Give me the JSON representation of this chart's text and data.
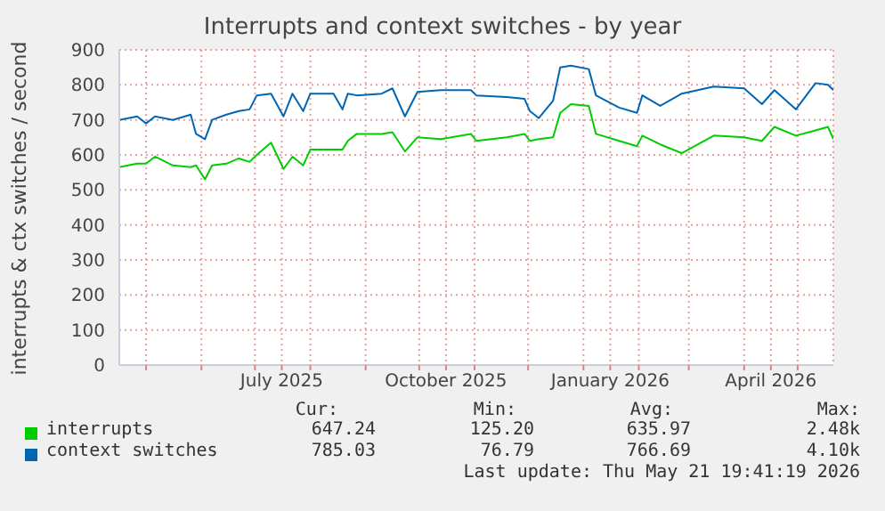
{
  "chart_data": {
    "type": "line",
    "title": "Interrupts and context switches - by year",
    "ylabel": "interrupts & ctx switches / second",
    "x": [
      "2025-04-16",
      "2025-04-26",
      "2025-05-01",
      "2025-05-06",
      "2025-05-16",
      "2025-05-26",
      "2025-05-29",
      "2025-06-03",
      "2025-06-07",
      "2025-06-15",
      "2025-06-22",
      "2025-06-28",
      "2025-07-02",
      "2025-07-10",
      "2025-07-17",
      "2025-07-22",
      "2025-07-28",
      "2025-08-01",
      "2025-08-14",
      "2025-08-19",
      "2025-08-22",
      "2025-08-27",
      "2025-09-10",
      "2025-09-16",
      "2025-09-23",
      "2025-09-30",
      "2025-10-13",
      "2025-10-30",
      "2025-11-02",
      "2025-11-19",
      "2025-11-29",
      "2025-12-02",
      "2025-12-07",
      "2025-12-15",
      "2025-12-19",
      "2025-12-25",
      "2026-01-04",
      "2026-01-08",
      "2026-01-21",
      "2026-01-31",
      "2026-02-03",
      "2026-02-13",
      "2026-02-25",
      "2026-03-15",
      "2026-04-01",
      "2026-04-11",
      "2026-04-18",
      "2026-04-30",
      "2026-05-11",
      "2026-05-18",
      "2026-05-21"
    ],
    "series": [
      {
        "name": "interrupts",
        "color": "#00cc00",
        "values": [
          565,
          575,
          575,
          595,
          570,
          565,
          570,
          530,
          570,
          575,
          590,
          580,
          600,
          635,
          560,
          595,
          570,
          615,
          615,
          615,
          640,
          660,
          660,
          665,
          610,
          650,
          645,
          660,
          640,
          650,
          660,
          640,
          645,
          650,
          720,
          745,
          740,
          660,
          640,
          625,
          655,
          630,
          605,
          655,
          650,
          640,
          680,
          655,
          670,
          680,
          645
        ]
      },
      {
        "name": "context switches",
        "color": "#0066b3",
        "values": [
          700,
          710,
          690,
          710,
          700,
          715,
          660,
          645,
          700,
          715,
          725,
          730,
          770,
          775,
          710,
          775,
          725,
          775,
          775,
          730,
          775,
          770,
          775,
          790,
          710,
          780,
          785,
          785,
          770,
          765,
          760,
          725,
          705,
          755,
          850,
          855,
          845,
          770,
          735,
          720,
          770,
          740,
          775,
          795,
          790,
          745,
          785,
          730,
          805,
          800,
          785
        ]
      }
    ],
    "xlim": [
      "2025-04-16",
      "2026-05-21"
    ],
    "xticks": [
      {
        "value": "2025-05-01",
        "label": null
      },
      {
        "value": "2025-06-01",
        "label": null
      },
      {
        "value": "2025-07-01",
        "label": null
      },
      {
        "value": "2025-07-16",
        "label": "July 2025"
      },
      {
        "value": "2025-08-01",
        "label": null
      },
      {
        "value": "2025-09-01",
        "label": null
      },
      {
        "value": "2025-10-01",
        "label": null
      },
      {
        "value": "2025-10-16",
        "label": "October 2025"
      },
      {
        "value": "2025-11-01",
        "label": null
      },
      {
        "value": "2025-12-01",
        "label": null
      },
      {
        "value": "2026-01-01",
        "label": null
      },
      {
        "value": "2026-01-16",
        "label": "January 2026"
      },
      {
        "value": "2026-02-01",
        "label": null
      },
      {
        "value": "2026-03-01",
        "label": null
      },
      {
        "value": "2026-04-01",
        "label": null
      },
      {
        "value": "2026-04-16",
        "label": "April 2026"
      },
      {
        "value": "2026-05-01",
        "label": null
      }
    ],
    "ylim": [
      0,
      900
    ],
    "yticks": [
      0,
      100,
      200,
      300,
      400,
      500,
      600,
      700,
      800,
      900
    ],
    "grid": true,
    "legend": "bottom",
    "marker": "none",
    "line_style": "solid",
    "annotations": [
      "Cur:",
      "Min:",
      "Avg:",
      "Max:",
      "647.24",
      "125.20",
      "635.97",
      "2.48k",
      "785.03",
      "76.79",
      "766.69",
      "4.10k",
      "Last update: Thu May 21 19:41:19 2026"
    ]
  }
}
